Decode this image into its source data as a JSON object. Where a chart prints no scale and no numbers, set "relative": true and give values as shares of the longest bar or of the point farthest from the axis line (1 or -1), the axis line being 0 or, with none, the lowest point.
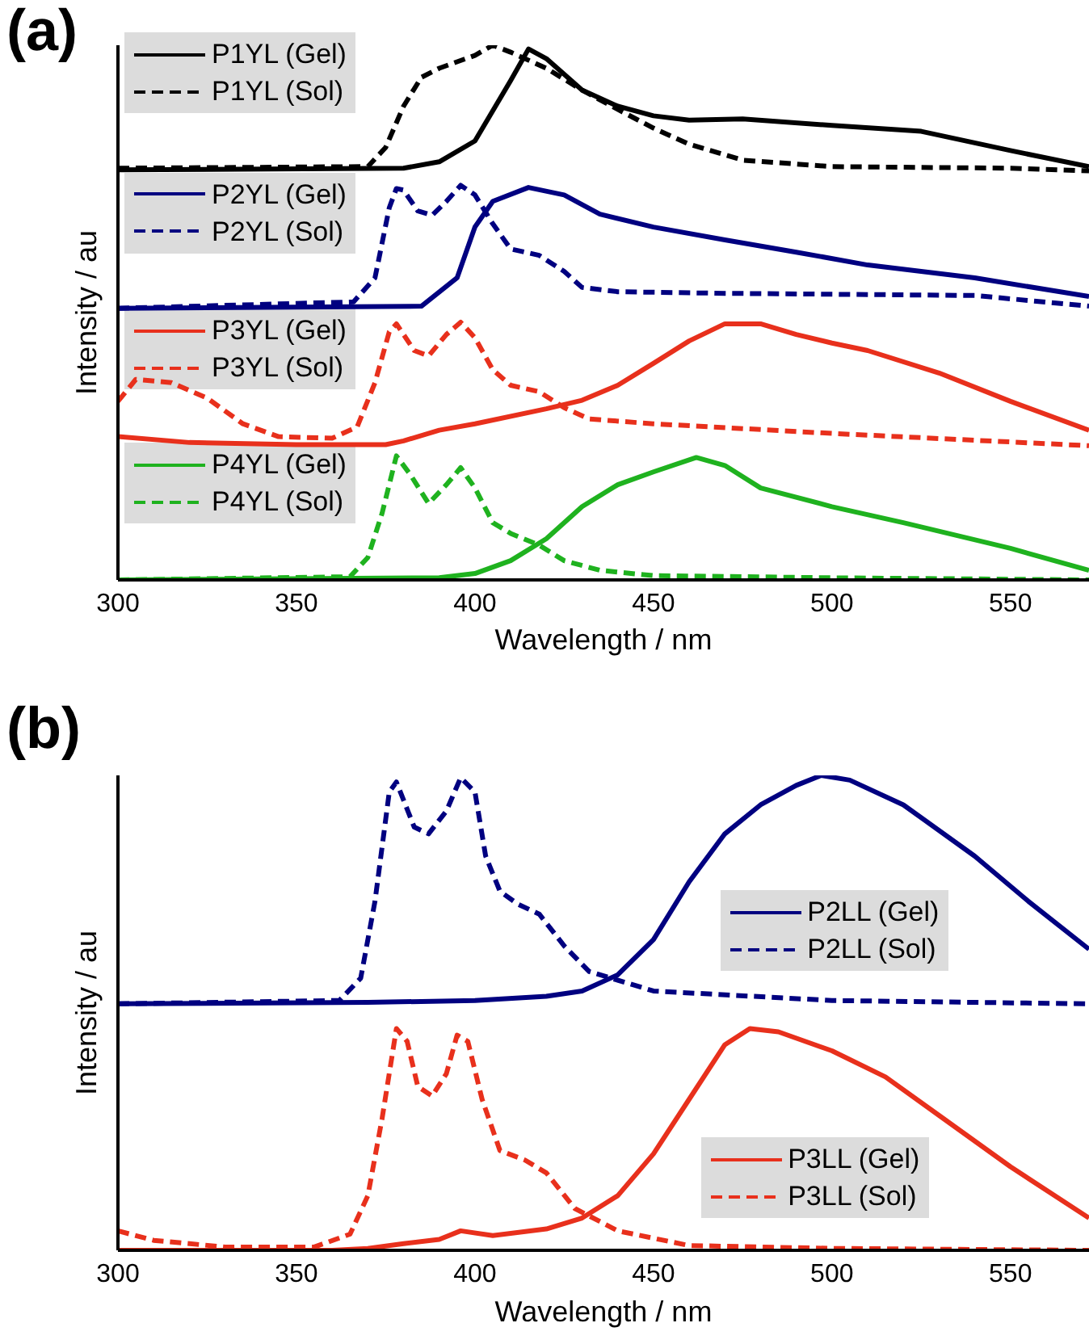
{
  "chart_data": [
    {
      "type": "line",
      "title": "(a)",
      "xlabel": "Wavelength / nm",
      "ylabel": "Intensity / au",
      "relative": true,
      "xlim": [
        300,
        572
      ],
      "xticks": [
        300,
        350,
        400,
        450,
        500,
        550
      ],
      "legend": "left",
      "grid": false,
      "marker": "none",
      "series": [
        {
          "name": "P1YL (Gel)",
          "color": "#000000",
          "line_style": "solid",
          "x": [
            300,
            380,
            390,
            400,
            410,
            415,
            420,
            430,
            440,
            450,
            460,
            475,
            500,
            525,
            550,
            572
          ],
          "values": [
            0.767,
            0.77,
            0.782,
            0.821,
            0.934,
            0.993,
            0.975,
            0.916,
            0.886,
            0.868,
            0.86,
            0.862,
            0.85,
            0.839,
            0.803,
            0.773
          ]
        },
        {
          "name": "P1YL (Sol)",
          "color": "#000000",
          "line_style": "dashed",
          "x": [
            300,
            370,
            375,
            380,
            385,
            390,
            400,
            405,
            410,
            420,
            430,
            440,
            450,
            460,
            475,
            500,
            550,
            572
          ],
          "values": [
            0.77,
            0.773,
            0.809,
            0.886,
            0.94,
            0.957,
            0.981,
            1,
            0.987,
            0.957,
            0.916,
            0.88,
            0.845,
            0.815,
            0.785,
            0.773,
            0.77,
            0.765
          ]
        },
        {
          "name": "P2YL (Gel)",
          "color": "#000080",
          "line_style": "solid",
          "x": [
            300,
            385,
            395,
            400,
            405,
            415,
            425,
            435,
            450,
            470,
            490,
            510,
            540,
            572
          ],
          "values": [
            0.508,
            0.512,
            0.565,
            0.66,
            0.708,
            0.734,
            0.72,
            0.684,
            0.66,
            0.636,
            0.613,
            0.589,
            0.565,
            0.53
          ]
        },
        {
          "name": "P2YL (Sol)",
          "color": "#000080",
          "line_style": "dashed",
          "x": [
            300,
            366,
            372,
            376,
            378,
            380,
            384,
            388,
            392,
            396,
            400,
            405,
            410,
            418,
            425,
            430,
            440,
            470,
            540,
            572
          ],
          "values": [
            0.508,
            0.52,
            0.565,
            0.696,
            0.732,
            0.729,
            0.69,
            0.682,
            0.708,
            0.738,
            0.72,
            0.666,
            0.619,
            0.607,
            0.577,
            0.547,
            0.539,
            0.536,
            0.532,
            0.512
          ]
        },
        {
          "name": "P3YL (Gel)",
          "color": "#e8301c",
          "line_style": "solid",
          "x": [
            300,
            320,
            350,
            375,
            380,
            390,
            400,
            420,
            430,
            440,
            450,
            460,
            470,
            480,
            490,
            500,
            510,
            530,
            550,
            572
          ],
          "values": [
            0.268,
            0.257,
            0.253,
            0.253,
            0.26,
            0.28,
            0.292,
            0.32,
            0.336,
            0.364,
            0.405,
            0.447,
            0.479,
            0.479,
            0.459,
            0.443,
            0.429,
            0.387,
            0.334,
            0.28
          ]
        },
        {
          "name": "P3YL (Sol)",
          "color": "#e8301c",
          "line_style": "dashed",
          "x": [
            300,
            305,
            315,
            325,
            335,
            345,
            360,
            367,
            372,
            376,
            378,
            383,
            387,
            392,
            396,
            400,
            405,
            410,
            418,
            425,
            432,
            450,
            500,
            572
          ],
          "values": [
            0.334,
            0.375,
            0.369,
            0.34,
            0.292,
            0.268,
            0.265,
            0.286,
            0.369,
            0.464,
            0.479,
            0.429,
            0.419,
            0.459,
            0.482,
            0.453,
            0.393,
            0.364,
            0.352,
            0.322,
            0.301,
            0.292,
            0.274,
            0.251
          ]
        },
        {
          "name": "P4YL (Gel)",
          "color": "#1fb21f",
          "line_style": "solid",
          "x": [
            300,
            390,
            400,
            410,
            420,
            430,
            440,
            450,
            462,
            470,
            480,
            500,
            520,
            550,
            572
          ],
          "values": [
            0,
            0.004,
            0.012,
            0.036,
            0.077,
            0.137,
            0.178,
            0.202,
            0.229,
            0.214,
            0.172,
            0.137,
            0.107,
            0.059,
            0.018
          ]
        },
        {
          "name": "P4YL (Sol)",
          "color": "#1fb21f",
          "line_style": "dashed",
          "x": [
            300,
            365,
            370,
            374,
            378,
            382,
            387,
            392,
            396,
            400,
            405,
            410,
            418,
            425,
            435,
            450,
            500,
            572
          ],
          "values": [
            0,
            0.006,
            0.042,
            0.125,
            0.232,
            0.196,
            0.143,
            0.178,
            0.21,
            0.172,
            0.107,
            0.087,
            0.065,
            0.036,
            0.018,
            0.008,
            0.004,
            0
          ]
        }
      ]
    },
    {
      "type": "line",
      "title": "(b)",
      "xlabel": "Wavelength / nm",
      "ylabel": "Intensity / au",
      "relative": true,
      "xlim": [
        300,
        572
      ],
      "xticks": [
        300,
        350,
        400,
        450,
        500,
        550
      ],
      "legend": "right",
      "grid": false,
      "marker": "none",
      "series": [
        {
          "name": "P2LL (Gel)",
          "color": "#000080",
          "line_style": "solid",
          "x": [
            300,
            370,
            400,
            420,
            430,
            440,
            450,
            460,
            470,
            480,
            490,
            497,
            505,
            520,
            540,
            555,
            572
          ],
          "values": [
            0.519,
            0.522,
            0.526,
            0.535,
            0.546,
            0.58,
            0.654,
            0.776,
            0.877,
            0.938,
            0.979,
            1,
            0.99,
            0.938,
            0.83,
            0.735,
            0.634
          ]
        },
        {
          "name": "P2LL (Sol)",
          "color": "#000080",
          "line_style": "dashed",
          "x": [
            300,
            362,
            368,
            372,
            376,
            378,
            383,
            387,
            392,
            396,
            400,
            403,
            407,
            412,
            418,
            425,
            432,
            450,
            500,
            572
          ],
          "values": [
            0.519,
            0.526,
            0.573,
            0.735,
            0.965,
            0.986,
            0.891,
            0.877,
            0.925,
            0.995,
            0.965,
            0.83,
            0.756,
            0.729,
            0.708,
            0.641,
            0.587,
            0.546,
            0.526,
            0.519
          ]
        },
        {
          "name": "P3LL (Gel)",
          "color": "#e8301c",
          "line_style": "solid",
          "x": [
            300,
            360,
            370,
            380,
            390,
            396,
            405,
            420,
            430,
            440,
            450,
            460,
            470,
            477,
            485,
            500,
            515,
            530,
            550,
            572
          ],
          "values": [
            0,
            0,
            0.004,
            0.014,
            0.023,
            0.041,
            0.031,
            0.045,
            0.068,
            0.115,
            0.203,
            0.318,
            0.433,
            0.467,
            0.46,
            0.42,
            0.365,
            0.284,
            0.176,
            0.068
          ]
        },
        {
          "name": "P3LL (Sol)",
          "color": "#e8301c",
          "line_style": "dashed",
          "x": [
            300,
            310,
            330,
            355,
            365,
            370,
            374,
            378,
            381,
            384,
            388,
            392,
            395,
            398,
            402,
            407,
            414,
            420,
            428,
            440,
            460,
            500,
            572
          ],
          "values": [
            0.041,
            0.021,
            0.007,
            0.007,
            0.034,
            0.115,
            0.278,
            0.467,
            0.44,
            0.345,
            0.325,
            0.372,
            0.453,
            0.44,
            0.318,
            0.21,
            0.19,
            0.163,
            0.088,
            0.041,
            0.01,
            0.004,
            0
          ]
        }
      ]
    }
  ]
}
